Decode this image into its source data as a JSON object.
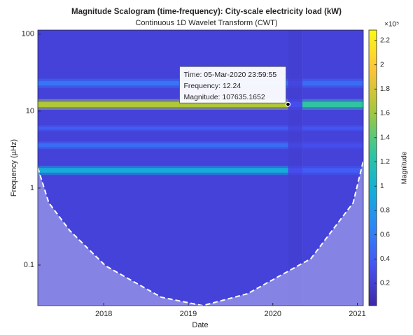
{
  "chart_data": {
    "type": "scalogram",
    "title": "Magnitude Scalogram (time-frequency): City-scale electricity load (kW)",
    "subtitle": "Continuous 1D Wavelet Transform (CWT)",
    "xlabel": "Date",
    "ylabel": "Frequency (µHz)",
    "xlim": [
      2017.22,
      2021.07
    ],
    "xticks": [
      2018,
      2019,
      2020,
      2021
    ],
    "ylim": [
      0.0297,
      113
    ],
    "yticks": [
      0.1,
      1,
      10,
      100
    ],
    "log_y": true,
    "colormap": "parula",
    "clim": [
      1600,
      228600
    ],
    "cticks": [
      {
        "value": 20000,
        "label": "0.2"
      },
      {
        "value": 40000,
        "label": "0.4"
      },
      {
        "value": 60000,
        "label": "0.6"
      },
      {
        "value": 80000,
        "label": "0.8"
      },
      {
        "value": 100000,
        "label": "1"
      },
      {
        "value": 120000,
        "label": "1.2"
      },
      {
        "value": 140000,
        "label": "1.4"
      },
      {
        "value": 160000,
        "label": "1.6"
      },
      {
        "value": 180000,
        "label": "1.8"
      },
      {
        "value": 200000,
        "label": "2"
      },
      {
        "value": 220000,
        "label": "2.2"
      }
    ],
    "colorbar_exponent": "×10⁵",
    "colorbar_label": "Magnitude",
    "segments": [
      2017.22,
      2020.18,
      2020.35,
      2021.07
    ],
    "background": [
      22000,
      20000,
      22000
    ],
    "bands": [
      {
        "frequency": 12.2,
        "width": 0.035,
        "values": [
          165000,
          30000,
          125000
        ]
      },
      {
        "frequency": 23,
        "width": 0.03,
        "values": [
          55000,
          25000,
          50000
        ]
      },
      {
        "frequency": 6,
        "width": 0.02,
        "values": [
          40000,
          25000,
          35000
        ]
      },
      {
        "frequency": 3.6,
        "width": 0.025,
        "values": [
          50000,
          25000,
          30000
        ]
      },
      {
        "frequency": 1.7,
        "width": 0.03,
        "values": [
          95000,
          30000,
          40000
        ]
      }
    ],
    "coi": {
      "x": [
        2017.22,
        2017.35,
        2017.6,
        2018.02,
        2018.68,
        2019.17,
        2019.7,
        2020.45,
        2020.95,
        2021.07
      ],
      "y": [
        1.84,
        0.644,
        0.279,
        0.098,
        0.0382,
        0.0297,
        0.0424,
        0.121,
        0.644,
        2.26
      ]
    },
    "datatip": {
      "x": 2020.18,
      "y": 12.24,
      "lines": [
        "Time: 05-Mar-2020 23:59:55",
        "Frequency: 12.24",
        "Magnitude: 107635.1652"
      ]
    }
  }
}
